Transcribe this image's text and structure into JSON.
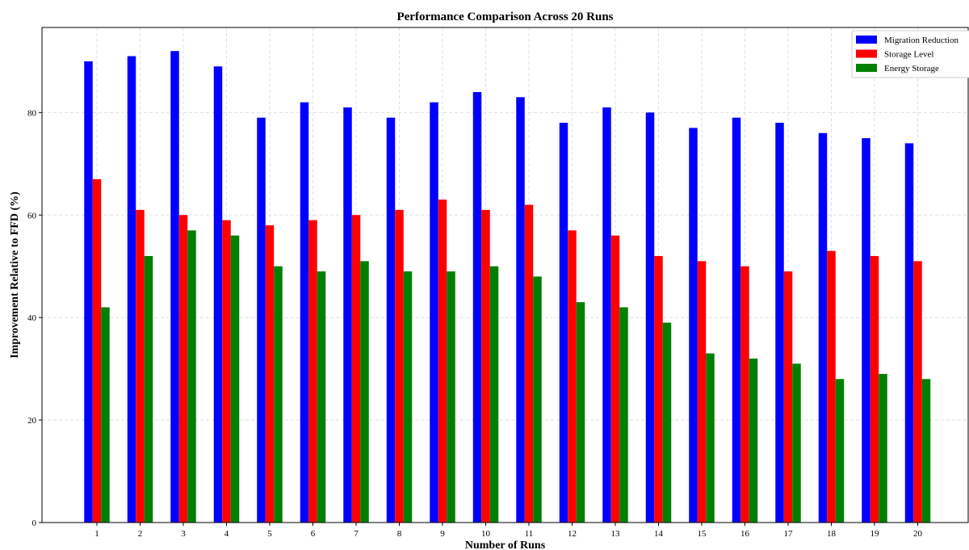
{
  "chart_data": {
    "type": "bar",
    "title": "Performance Comparison Across 20 Runs",
    "xlabel": "Number of Runs",
    "ylabel": "Improvement Relative to FFD (%)",
    "categories": [
      "1",
      "2",
      "3",
      "4",
      "5",
      "6",
      "7",
      "8",
      "9",
      "10",
      "11",
      "12",
      "13",
      "14",
      "15",
      "16",
      "17",
      "18",
      "19",
      "20"
    ],
    "series": [
      {
        "name": "Migration Reduction",
        "color": "#0000ff",
        "values": [
          90,
          91,
          92,
          89,
          79,
          82,
          81,
          79,
          82,
          84,
          83,
          78,
          81,
          80,
          77,
          79,
          78,
          76,
          75,
          74
        ]
      },
      {
        "name": "Storage Level",
        "color": "#ff0000",
        "values": [
          67,
          61,
          60,
          59,
          58,
          59,
          60,
          61,
          63,
          61,
          62,
          57,
          56,
          52,
          51,
          50,
          49,
          53,
          52,
          51
        ]
      },
      {
        "name": "Energy Storage",
        "color": "#008000",
        "values": [
          42,
          52,
          57,
          56,
          50,
          49,
          51,
          49,
          49,
          50,
          48,
          43,
          42,
          39,
          33,
          32,
          31,
          28,
          29,
          28
        ]
      }
    ],
    "ylim": [
      0,
      96.6
    ],
    "yticks": [
      0,
      20,
      40,
      60,
      80
    ],
    "grid": true,
    "legend_position": "top-right"
  }
}
